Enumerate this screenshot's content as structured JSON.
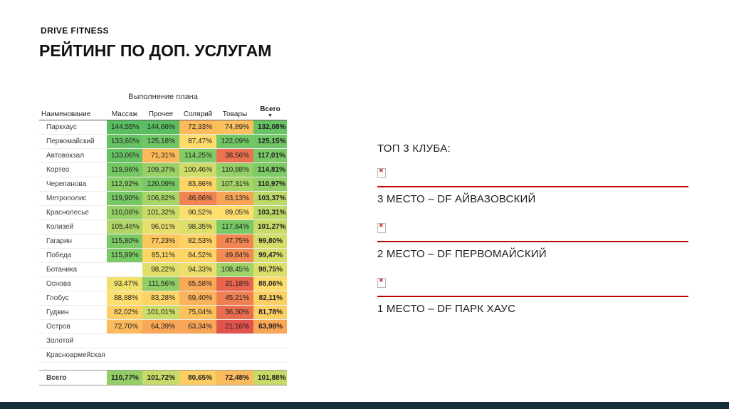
{
  "page": {
    "brand": "DRIVE FITNESS",
    "title": "РЕЙТИНГ ПО ДОП. УСЛУГАМ"
  },
  "icons": {
    "sort_descending": "▼",
    "broken_image": "✕"
  },
  "colors": {
    "accent_red": "#c00000",
    "footer_bar": "#142f38"
  },
  "chart_data": {
    "type": "heatmap",
    "title": "Выполнение плана",
    "group_header": "Выполнение плана",
    "columns": [
      "Наименование",
      "Массаж",
      "Прочее",
      "Солярий",
      "Товары",
      "Всего"
    ],
    "sorted_by": "Всего",
    "rows": [
      {
        "name": "Паркхаус",
        "values": [
          "144,55%",
          "144,66%",
          "72,33%",
          "74,89%",
          "132,08%"
        ]
      },
      {
        "name": "Первомайский",
        "values": [
          "133,60%",
          "125,18%",
          "87,47%",
          "122,09%",
          "125,15%"
        ]
      },
      {
        "name": "Автовокзал",
        "values": [
          "133,06%",
          "71,31%",
          "114,25%",
          "38,56%",
          "117,01%"
        ]
      },
      {
        "name": "Кортео",
        "values": [
          "119,96%",
          "109,37%",
          "100,46%",
          "110,88%",
          "114,81%"
        ]
      },
      {
        "name": "Черепанова",
        "values": [
          "112,92%",
          "120,09%",
          "83,86%",
          "107,31%",
          "110,97%"
        ]
      },
      {
        "name": "Метрополис",
        "values": [
          "119,90%",
          "106,82%",
          "46,66%",
          "63,13%",
          "103,37%"
        ]
      },
      {
        "name": "Краснолесье",
        "values": [
          "110,06%",
          "101,32%",
          "90,52%",
          "89,05%",
          "103,31%"
        ]
      },
      {
        "name": "Колизей",
        "values": [
          "105,46%",
          "96,01%",
          "98,35%",
          "117,84%",
          "101,27%"
        ]
      },
      {
        "name": "Гагарин",
        "values": [
          "115,80%",
          "77,23%",
          "82,53%",
          "47,75%",
          "99,80%"
        ]
      },
      {
        "name": "Победа",
        "values": [
          "115,99%",
          "85,11%",
          "84,52%",
          "49,84%",
          "99,47%"
        ]
      },
      {
        "name": "Ботаника",
        "values": [
          "",
          "98,22%",
          "94,33%",
          "108,45%",
          "98,75%"
        ]
      },
      {
        "name": "Основа",
        "values": [
          "93,47%",
          "111,56%",
          "65,58%",
          "31,18%",
          "88,06%"
        ]
      },
      {
        "name": "Глобус",
        "values": [
          "88,88%",
          "83,28%",
          "69,40%",
          "45,21%",
          "82,11%"
        ]
      },
      {
        "name": "Гудвин",
        "values": [
          "82,02%",
          "101,01%",
          "75,04%",
          "36,30%",
          "81,78%"
        ]
      },
      {
        "name": "Остров",
        "values": [
          "72,70%",
          "64,39%",
          "63,34%",
          "21,16%",
          "63,98%"
        ]
      },
      {
        "name": "Золотой",
        "values": [
          "",
          "",
          "",
          "",
          ""
        ]
      },
      {
        "name": "Красноармейская",
        "values": [
          "",
          "",
          "",
          "",
          ""
        ]
      }
    ],
    "total_row": {
      "name": "Всего",
      "values": [
        "110,77%",
        "101,72%",
        "80,65%",
        "72,48%",
        "101,88%"
      ]
    },
    "color_scale": {
      "stops": [
        [
          20,
          "#e0514d"
        ],
        [
          35,
          "#e96a4f"
        ],
        [
          50,
          "#f28b53"
        ],
        [
          65,
          "#f9a857"
        ],
        [
          78,
          "#fcc85f"
        ],
        [
          90,
          "#fee06e"
        ],
        [
          98,
          "#e0df6a"
        ],
        [
          105,
          "#b2d767"
        ],
        [
          115,
          "#7cca66"
        ],
        [
          150,
          "#54bb61"
        ]
      ]
    }
  },
  "right_panel": {
    "heading": "ТОП 3 КЛУБА:",
    "items": [
      {
        "label": "3 МЕСТО – DF АЙВАЗОВСКИЙ"
      },
      {
        "label": "2 МЕСТО – DF ПЕРВОМАЙСКИЙ"
      },
      {
        "label": "1 МЕСТО – DF ПАРК ХАУС"
      }
    ]
  }
}
